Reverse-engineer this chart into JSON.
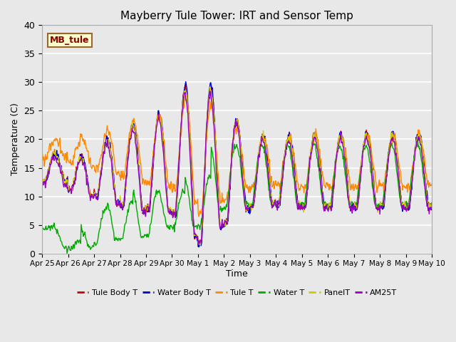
{
  "title": "Mayberry Tule Tower: IRT and Sensor Temp",
  "xlabel": "Time",
  "ylabel": "Temperature (C)",
  "ylim": [
    0,
    40
  ],
  "background_color": "#e8e8e8",
  "grid_color": "white",
  "annotation_text": "MB_tule",
  "annotation_bg": "#ffffcc",
  "annotation_border": "#996633",
  "annotation_text_color": "#880000",
  "series_colors": {
    "Tule Body T": "#cc0000",
    "Water Body T": "#0000cc",
    "Tule T": "#ff8800",
    "Water T": "#00aa00",
    "PanelT": "#cccc00",
    "AM25T": "#9900bb"
  },
  "legend_entries": [
    "Tule Body T",
    "Water Body T",
    "Tule T",
    "Water T",
    "PanelT",
    "AM25T"
  ],
  "xtick_labels": [
    "Apr 25",
    "Apr 26",
    "Apr 27",
    "Apr 28",
    "Apr 29",
    "Apr 30",
    "May 1",
    "May 2",
    "May 3",
    "May 4",
    "May 5",
    "May 6",
    "May 7",
    "May 8",
    "May 9",
    "May 10"
  ],
  "ytick_labels": [
    0,
    5,
    10,
    15,
    20,
    25,
    30,
    35,
    40
  ],
  "n_days": 15
}
